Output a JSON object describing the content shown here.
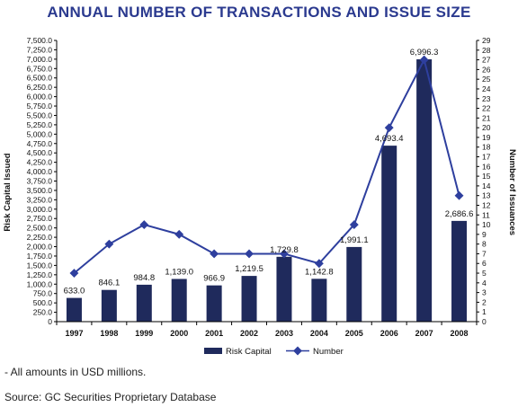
{
  "chart_data": {
    "type": "bar",
    "title": "ANNUAL NUMBER OF TRANSACTIONS AND ISSUE SIZE",
    "ylabel": "Risk Capital Issued",
    "y2label": "Number of Issuances",
    "ylim": [
      0,
      7500
    ],
    "y2lim": [
      0,
      29
    ],
    "y_ticks": [
      "0",
      "250.0",
      "500.0",
      "750.0",
      "1,000.0",
      "1,250.0",
      "1,500.0",
      "1,750.0",
      "2,000.0",
      "2,250.0",
      "2,500.0",
      "2,750.0",
      "3,000.0",
      "3,250.0",
      "3,500.0",
      "3,750.0",
      "4,000.0",
      "4,250.0",
      "4,500.0",
      "4,750.0",
      "5,000.0",
      "5,250.0",
      "5,500.0",
      "5,750.0",
      "6,000.0",
      "6,250.0",
      "6,500.0",
      "6,750.0",
      "7,000.0",
      "7,250.0",
      "7,500.0"
    ],
    "y2_ticks": [
      "0",
      "1",
      "2",
      "3",
      "4",
      "5",
      "6",
      "7",
      "8",
      "9",
      "10",
      "11",
      "12",
      "13",
      "14",
      "15",
      "16",
      "17",
      "18",
      "19",
      "20",
      "21",
      "22",
      "23",
      "24",
      "25",
      "26",
      "27",
      "28",
      "29"
    ],
    "categories": [
      "1997",
      "1998",
      "1999",
      "2000",
      "2001",
      "2002",
      "2003",
      "2004",
      "2005",
      "2006",
      "2007",
      "2008"
    ],
    "series": [
      {
        "name": "Risk Capital",
        "type": "bar",
        "axis": "left",
        "color": "#1f2a5c",
        "values": [
          633.0,
          846.1,
          984.8,
          1139.0,
          966.9,
          1219.5,
          1729.8,
          1142.8,
          1991.1,
          4693.4,
          6996.3,
          2686.6
        ],
        "labels": [
          "633.0",
          "846.1",
          "984.8",
          "1,139.0",
          "966.9",
          "1,219.5",
          "1,729.8",
          "1,142.8",
          "1,991.1",
          "4,693.4",
          "6,996.3",
          "2,686.6"
        ]
      },
      {
        "name": "Number",
        "type": "line",
        "axis": "right",
        "color": "#2e3f9e",
        "values": [
          5,
          8,
          10,
          9,
          7,
          7,
          7,
          6,
          10,
          20,
          27,
          13
        ]
      }
    ],
    "grid": false,
    "legend": "bottom-center"
  },
  "notes": {
    "amounts": "- All amounts in USD millions.",
    "source": "Source: GC Securities Proprietary Database"
  }
}
